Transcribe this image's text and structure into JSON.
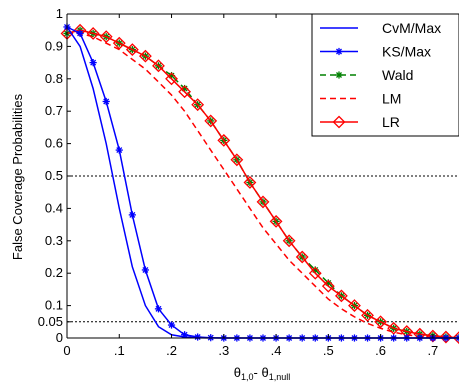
{
  "chart_data": {
    "type": "line",
    "title": "",
    "xlabel": "θ1,0- θ1,null",
    "xlabel_parts": {
      "t1": "θ",
      "s1": "1,0",
      "mid": "- θ",
      "s2": "1,null"
    },
    "ylabel": "False Coverage Probabilities",
    "xlim": [
      0,
      0.75
    ],
    "ylim": [
      0,
      1
    ],
    "xticks": [
      0,
      0.1,
      0.2,
      0.3,
      0.4,
      0.5,
      0.6,
      0.7
    ],
    "xtick_labels": [
      "0",
      ".1",
      ".2",
      ".3",
      ".4",
      ".5",
      ".6",
      ".7"
    ],
    "yticks": [
      0,
      0.05,
      0.1,
      0.2,
      0.3,
      0.4,
      0.5,
      0.6,
      0.7,
      0.8,
      0.9,
      1
    ],
    "ytick_labels": [
      "0",
      "0.05",
      "0.1",
      "0.2",
      "0.3",
      "0.4",
      "0.5",
      "0.6",
      "0.7",
      "0.8",
      "0.9",
      "1"
    ],
    "reference_lines": [
      0.5,
      0.05
    ],
    "grid": false,
    "legend_position": "top-right",
    "series": [
      {
        "name": "CvM/Max",
        "color": "#0000ff",
        "style": "solid",
        "marker": "none",
        "x": [
          0,
          0.025,
          0.05,
          0.075,
          0.1,
          0.125,
          0.15,
          0.175,
          0.2,
          0.225,
          0.25,
          0.275,
          0.3,
          0.35,
          0.4,
          0.5,
          0.6,
          0.75
        ],
        "y": [
          0.96,
          0.9,
          0.77,
          0.6,
          0.4,
          0.22,
          0.1,
          0.035,
          0.01,
          0.003,
          0.001,
          0,
          0,
          0,
          0,
          0,
          0,
          0
        ]
      },
      {
        "name": "KS/Max",
        "color": "#0000ff",
        "style": "solid",
        "marker": "star",
        "x": [
          0,
          0.025,
          0.05,
          0.075,
          0.1,
          0.125,
          0.15,
          0.175,
          0.2,
          0.225,
          0.25,
          0.275,
          0.3,
          0.325,
          0.35,
          0.375,
          0.4,
          0.425,
          0.45,
          0.475,
          0.5,
          0.525,
          0.55,
          0.575,
          0.6,
          0.625,
          0.65,
          0.675,
          0.7,
          0.725,
          0.75
        ],
        "y": [
          0.96,
          0.94,
          0.85,
          0.73,
          0.58,
          0.38,
          0.21,
          0.09,
          0.04,
          0.01,
          0.003,
          0.001,
          0,
          0,
          0,
          0,
          0,
          0,
          0,
          0,
          0,
          0,
          0,
          0,
          0,
          0,
          0,
          0,
          0,
          0,
          0
        ]
      },
      {
        "name": "Wald",
        "color": "#008000",
        "style": "dashed",
        "marker": "star",
        "x": [
          0,
          0.025,
          0.05,
          0.075,
          0.1,
          0.125,
          0.15,
          0.175,
          0.2,
          0.225,
          0.25,
          0.275,
          0.3,
          0.325,
          0.35,
          0.375,
          0.4,
          0.425,
          0.45,
          0.475,
          0.5,
          0.525,
          0.55,
          0.575,
          0.6,
          0.625,
          0.65,
          0.675,
          0.7,
          0.725,
          0.75
        ],
        "y": [
          0.94,
          0.95,
          0.94,
          0.93,
          0.91,
          0.89,
          0.87,
          0.84,
          0.81,
          0.77,
          0.72,
          0.67,
          0.61,
          0.55,
          0.48,
          0.42,
          0.36,
          0.3,
          0.25,
          0.21,
          0.17,
          0.13,
          0.1,
          0.07,
          0.05,
          0.03,
          0.02,
          0.012,
          0.007,
          0.003,
          0.001
        ]
      },
      {
        "name": "LM",
        "color": "#ff0000",
        "style": "dashed",
        "marker": "none",
        "x": [
          0,
          0.025,
          0.05,
          0.075,
          0.1,
          0.125,
          0.15,
          0.175,
          0.2,
          0.225,
          0.25,
          0.275,
          0.3,
          0.325,
          0.35,
          0.375,
          0.4,
          0.425,
          0.45,
          0.475,
          0.5,
          0.525,
          0.55,
          0.575,
          0.6,
          0.625,
          0.65,
          0.675,
          0.7,
          0.725,
          0.75
        ],
        "y": [
          0.94,
          0.94,
          0.93,
          0.91,
          0.89,
          0.86,
          0.83,
          0.79,
          0.75,
          0.7,
          0.64,
          0.58,
          0.52,
          0.46,
          0.4,
          0.34,
          0.29,
          0.24,
          0.2,
          0.16,
          0.12,
          0.09,
          0.065,
          0.045,
          0.03,
          0.018,
          0.01,
          0.005,
          0.002,
          0.001,
          0
        ]
      },
      {
        "name": "LR",
        "color": "#ff0000",
        "style": "solid",
        "marker": "diamond",
        "x": [
          0,
          0.025,
          0.05,
          0.075,
          0.1,
          0.125,
          0.15,
          0.175,
          0.2,
          0.225,
          0.25,
          0.275,
          0.3,
          0.325,
          0.35,
          0.375,
          0.4,
          0.425,
          0.45,
          0.475,
          0.5,
          0.525,
          0.55,
          0.575,
          0.6,
          0.625,
          0.65,
          0.675,
          0.7,
          0.725,
          0.75
        ],
        "y": [
          0.94,
          0.95,
          0.94,
          0.93,
          0.91,
          0.89,
          0.87,
          0.84,
          0.8,
          0.76,
          0.72,
          0.67,
          0.61,
          0.55,
          0.48,
          0.42,
          0.36,
          0.3,
          0.25,
          0.2,
          0.16,
          0.13,
          0.1,
          0.07,
          0.05,
          0.03,
          0.02,
          0.012,
          0.006,
          0.003,
          0.001
        ]
      }
    ]
  }
}
